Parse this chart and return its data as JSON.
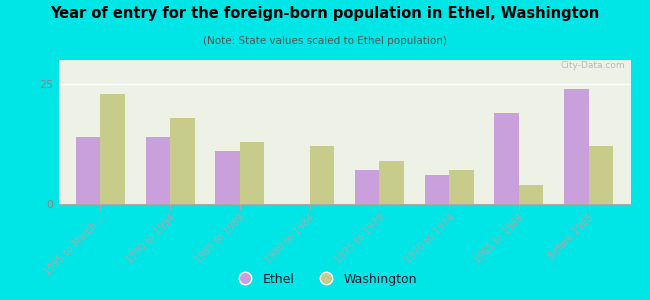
{
  "title": "Year of entry for the foreign-born population in Ethel, Washington",
  "subtitle": "(Note: State values scaled to Ethel population)",
  "categories": [
    "1995 to March ...",
    "1990 to 1994",
    "1985 to 1989",
    "1980 to 1984",
    "1975 to 1979",
    "1970 to 1974",
    "1965 to 1969",
    "Before 1965"
  ],
  "ethel_values": [
    14,
    14,
    11,
    0,
    7,
    6,
    19,
    24
  ],
  "washington_values": [
    23,
    18,
    13,
    12,
    9,
    7,
    4,
    12
  ],
  "ethel_color": "#c9a0dc",
  "washington_color": "#c8cc8a",
  "background_color": "#00e5e5",
  "plot_bg": "#eef2e6",
  "ylim": [
    0,
    30
  ],
  "yticks": [
    0,
    25
  ],
  "watermark": "City-Data.com"
}
